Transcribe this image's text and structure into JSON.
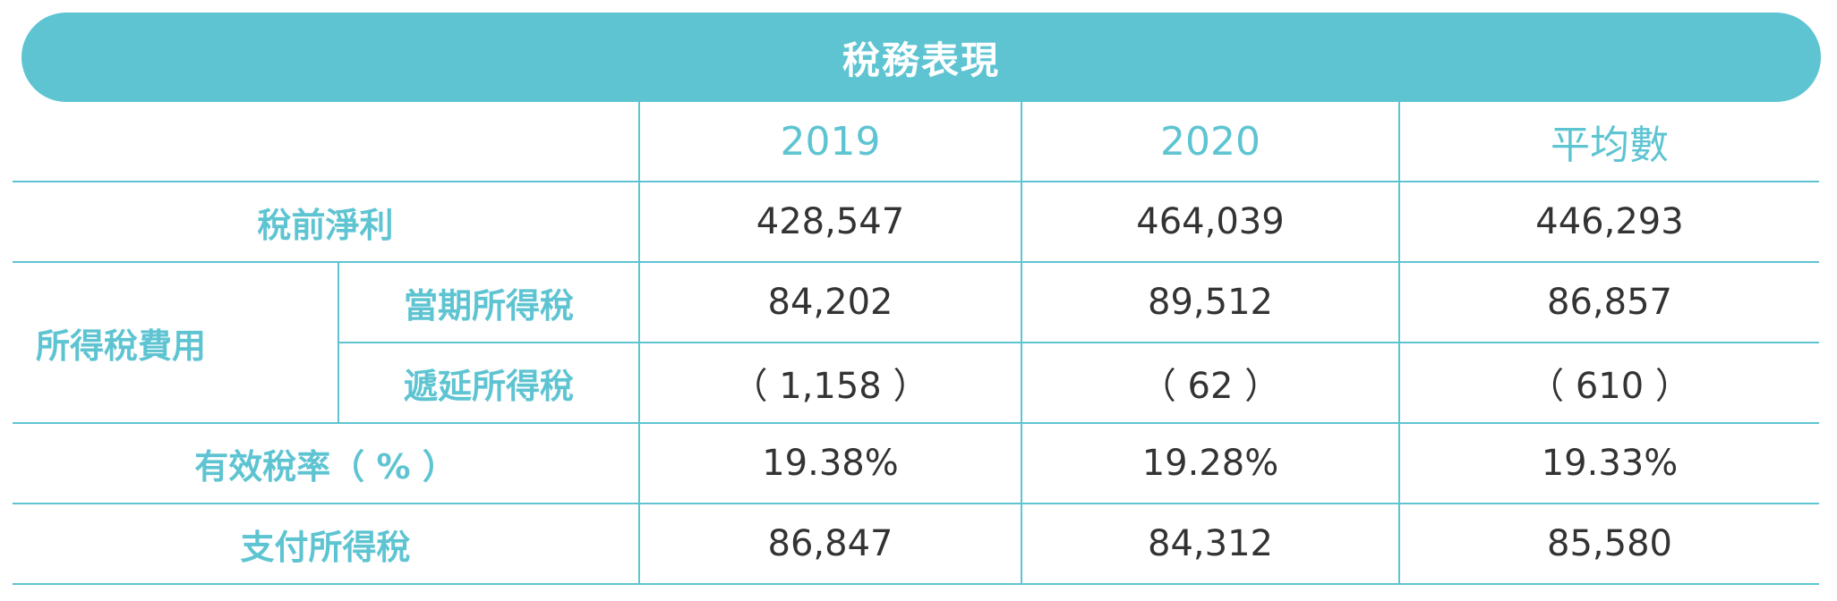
{
  "title": "稅務表現",
  "columns": [
    "2019",
    "2020",
    "平均數"
  ],
  "rows": {
    "pretax": {
      "label": "稅前淨利",
      "values": [
        "428,547",
        "464,039",
        "446,293"
      ]
    },
    "expense_group_label": "所得稅費用",
    "current": {
      "label": "當期所得稅",
      "values": [
        "84,202",
        "89,512",
        "86,857"
      ]
    },
    "deferred": {
      "label": "遞延所得稅",
      "values": [
        "（ 1,158 ）",
        "（ 62 ）",
        "（ 610 ）"
      ]
    },
    "effective": {
      "label": "有效稅率（ % ）",
      "values": [
        "19.38%",
        "19.28%",
        "19.33%"
      ]
    },
    "paid": {
      "label": "支付所得稅",
      "values": [
        "86,847",
        "84,312",
        "85,580"
      ]
    }
  },
  "colors": {
    "accent": "#5ec4d2",
    "text": "#333333"
  }
}
